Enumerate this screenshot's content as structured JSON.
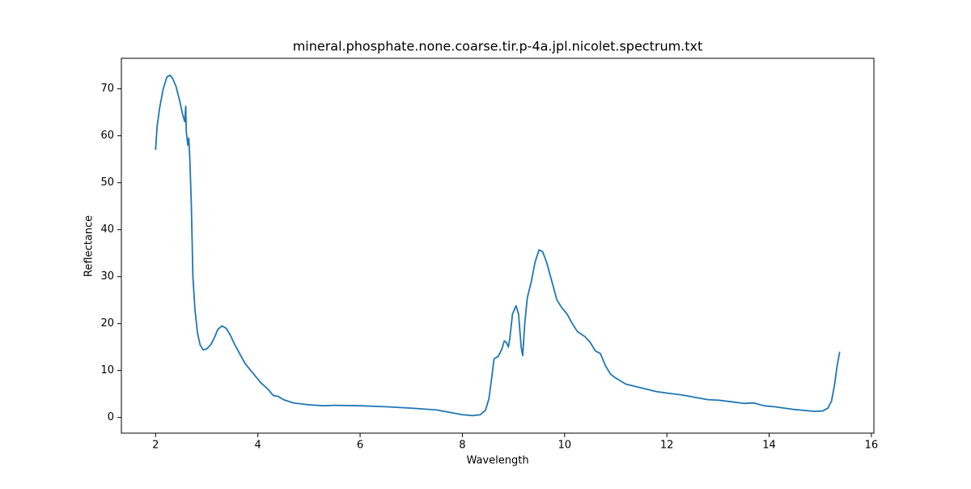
{
  "chart_data": {
    "type": "line",
    "title": "mineral.phosphate.none.coarse.tir.p-4a.jpl.nicolet.spectrum.txt",
    "x_label": "Wavelength",
    "y_label": "Reflectance",
    "color": "#1f77b4",
    "x": [
      2.0,
      2.03,
      2.08,
      2.15,
      2.22,
      2.28,
      2.33,
      2.4,
      2.47,
      2.53,
      2.57,
      2.59,
      2.6,
      2.63,
      2.65,
      2.67,
      2.7,
      2.73,
      2.77,
      2.82,
      2.87,
      2.93,
      3.0,
      3.08,
      3.15,
      3.22,
      3.3,
      3.38,
      3.45,
      3.55,
      3.65,
      3.75,
      3.9,
      4.05,
      4.2,
      4.3,
      4.4,
      4.5,
      4.7,
      5.0,
      5.3,
      5.5,
      6.0,
      6.5,
      7.0,
      7.5,
      7.8,
      8.0,
      8.2,
      8.35,
      8.45,
      8.52,
      8.58,
      8.62,
      8.7,
      8.77,
      8.82,
      8.86,
      8.9,
      8.93,
      8.98,
      9.05,
      9.1,
      9.15,
      9.18,
      9.22,
      9.27,
      9.35,
      9.42,
      9.5,
      9.57,
      9.65,
      9.75,
      9.85,
      9.95,
      10.05,
      10.15,
      10.25,
      10.4,
      10.5,
      10.6,
      10.7,
      10.8,
      10.9,
      11.0,
      11.2,
      11.5,
      11.8,
      12.0,
      12.3,
      12.6,
      12.8,
      13.0,
      13.3,
      13.5,
      13.7,
      13.9,
      14.1,
      14.3,
      14.5,
      14.7,
      14.9,
      15.05,
      15.15,
      15.22,
      15.28,
      15.33,
      15.38
    ],
    "values": [
      57,
      62,
      66,
      70,
      72.5,
      72.9,
      72.3,
      70.5,
      67.5,
      64.5,
      63,
      66.3,
      61,
      58,
      59.5,
      55,
      45,
      30,
      23,
      18,
      15.5,
      14.4,
      14.6,
      15.5,
      17,
      18.8,
      19.5,
      19,
      17.8,
      15.5,
      13.5,
      11.5,
      9.5,
      7.5,
      6,
      4.7,
      4.5,
      3.8,
      3.1,
      2.7,
      2.5,
      2.6,
      2.5,
      2.3,
      2.0,
      1.6,
      1.0,
      0.6,
      0.4,
      0.6,
      1.5,
      4,
      9,
      12.5,
      13,
      14.5,
      16.3,
      16,
      15,
      17,
      22,
      23.8,
      22,
      15,
      13.2,
      20,
      25.5,
      29,
      33,
      35.7,
      35.3,
      33,
      29,
      25,
      23.3,
      22,
      20,
      18.3,
      17.2,
      16,
      14.2,
      13.6,
      11,
      9.2,
      8.4,
      7.1,
      6.3,
      5.5,
      5.2,
      4.8,
      4.2,
      3.8,
      3.7,
      3.3,
      3.0,
      3.1,
      2.5,
      2.3,
      2.0,
      1.7,
      1.5,
      1.3,
      1.4,
      2.0,
      3.5,
      7,
      11,
      14
    ],
    "xlim": [
      1.331,
      16.049
    ],
    "xticks": [
      2,
      4,
      6,
      8,
      10,
      12,
      14,
      16
    ],
    "ylim": [
      -3.33,
      76.5
    ],
    "yticks": [
      0,
      10,
      20,
      30,
      40,
      50,
      60,
      70
    ]
  }
}
